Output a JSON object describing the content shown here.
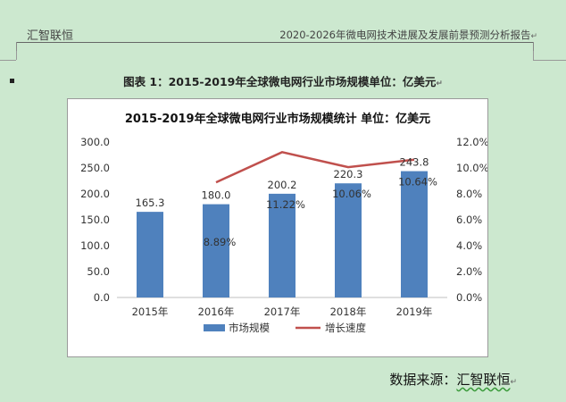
{
  "header": {
    "company": "汇智联恒",
    "report_title": "2020-2026年微电网技术进展及发展前景预测分析报告"
  },
  "figure_caption": "图表 1：2015-2019年全球微电网行业市场规模单位：亿美元",
  "source_label": "数据来源：",
  "source_name": "汇智联恒",
  "chart_data": {
    "type": "bar",
    "title": "2015-2019年全球微电网行业市场规模统计 单位：亿美元",
    "categories": [
      "2015年",
      "2016年",
      "2017年",
      "2018年",
      "2019年"
    ],
    "series": [
      {
        "name": "市场规模",
        "type": "bar",
        "axis": "left",
        "color": "#4f81bd",
        "values": [
          165.3,
          180.0,
          200.2,
          220.3,
          243.8
        ],
        "labels": [
          "165.3",
          "180.0",
          "200.2",
          "220.3",
          "243.8"
        ]
      },
      {
        "name": "增长速度",
        "type": "line",
        "axis": "right",
        "color": "#c0504d",
        "values": [
          null,
          8.89,
          11.22,
          10.06,
          10.64
        ],
        "labels": [
          "",
          "8.89%",
          "11.22%",
          "10.06%",
          "10.64%"
        ]
      }
    ],
    "y_left": {
      "min": 0,
      "max": 300,
      "step": 50,
      "ticks": [
        "0.0",
        "50.0",
        "100.0",
        "150.0",
        "200.0",
        "250.0",
        "300.0"
      ]
    },
    "y_right": {
      "min": 0,
      "max": 12,
      "step": 2,
      "ticks": [
        "0.0%",
        "2.0%",
        "4.0%",
        "6.0%",
        "8.0%",
        "10.0%",
        "12.0%"
      ]
    },
    "grid": false,
    "legend": "bottom"
  }
}
